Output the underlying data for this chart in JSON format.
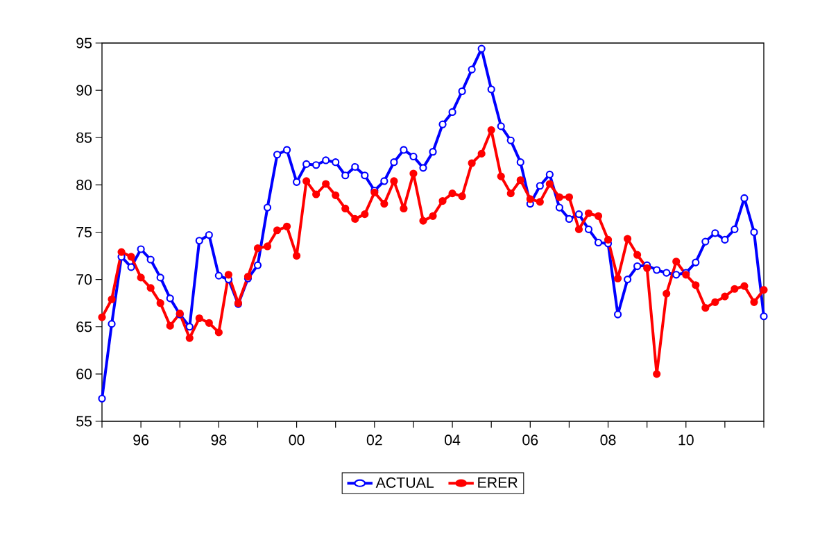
{
  "chart_data": {
    "type": "line",
    "x": [
      "1995-01",
      "1995-04",
      "1995-07",
      "1995-10",
      "1996-01",
      "1996-04",
      "1996-07",
      "1996-10",
      "1997-01",
      "1997-04",
      "1997-07",
      "1997-10",
      "1998-01",
      "1998-04",
      "1998-07",
      "1998-10",
      "1999-01",
      "1999-04",
      "1999-07",
      "1999-10",
      "2000-01",
      "2000-04",
      "2000-07",
      "2000-10",
      "2001-01",
      "2001-04",
      "2001-07",
      "2001-10",
      "2002-01",
      "2002-04",
      "2002-07",
      "2002-10",
      "2003-01",
      "2003-04",
      "2003-07",
      "2003-10",
      "2004-01",
      "2004-04",
      "2004-07",
      "2004-10",
      "2005-01",
      "2005-04",
      "2005-07",
      "2005-10",
      "2006-01",
      "2006-04",
      "2006-07",
      "2006-10",
      "2007-01",
      "2007-04",
      "2007-07",
      "2007-10",
      "2008-01",
      "2008-04",
      "2008-07",
      "2008-10",
      "2009-01",
      "2009-04",
      "2009-07",
      "2009-10",
      "2010-01",
      "2010-04",
      "2010-07",
      "2010-10",
      "2011-01",
      "2011-04",
      "2011-07",
      "2011-10",
      "2012-01"
    ],
    "series": [
      {
        "name": "ACTUAL",
        "color": "#0000ff",
        "marker": "circle",
        "values": [
          57.4,
          65.3,
          72.4,
          71.3,
          73.2,
          72.1,
          70.2,
          68.0,
          66.3,
          65.0,
          74.1,
          74.7,
          70.4,
          70.0,
          67.4,
          70.1,
          71.5,
          77.6,
          83.2,
          83.7,
          80.3,
          82.2,
          82.1,
          82.6,
          82.4,
          81.0,
          81.9,
          81.0,
          79.4,
          80.4,
          82.4,
          83.7,
          83.0,
          81.8,
          83.5,
          86.4,
          87.7,
          89.9,
          92.2,
          94.4,
          90.1,
          86.2,
          84.7,
          82.4,
          78.0,
          79.9,
          81.1,
          77.6,
          76.4,
          76.9,
          75.3,
          73.9,
          73.8,
          66.3,
          70.0,
          71.4,
          71.5,
          71.0,
          70.7,
          70.5,
          70.7,
          71.8,
          74.0,
          74.9,
          74.2,
          75.3,
          78.6,
          75.0,
          66.1
        ]
      },
      {
        "name": "ERER",
        "color": "#ff0000",
        "marker": "circle",
        "values": [
          66.0,
          67.9,
          72.9,
          72.4,
          70.2,
          69.1,
          67.5,
          65.1,
          66.4,
          63.8,
          65.9,
          65.4,
          64.4,
          70.5,
          67.5,
          70.3,
          73.3,
          73.5,
          75.2,
          75.6,
          72.5,
          80.4,
          79.0,
          80.1,
          78.9,
          77.5,
          76.4,
          76.9,
          79.2,
          78.0,
          80.4,
          77.5,
          81.2,
          76.2,
          76.7,
          78.3,
          79.1,
          78.8,
          82.3,
          83.3,
          85.8,
          80.9,
          79.1,
          80.5,
          78.5,
          78.2,
          80.1,
          78.7,
          78.7,
          75.3,
          77.0,
          76.7,
          74.2,
          70.1,
          74.3,
          72.6,
          71.2,
          60.0,
          68.5,
          71.9,
          70.5,
          69.4,
          67.0,
          67.6,
          68.2,
          69.0,
          69.3,
          67.6,
          68.9
        ]
      }
    ],
    "xlim": [
      "1995-01",
      "2012-01"
    ],
    "xticks": [
      {
        "value": "1995-01",
        "label": null
      },
      {
        "value": "1996-01",
        "label": "96"
      },
      {
        "value": "1997-01",
        "label": null
      },
      {
        "value": "1998-01",
        "label": "98"
      },
      {
        "value": "1999-01",
        "label": null
      },
      {
        "value": "2000-01",
        "label": "00"
      },
      {
        "value": "2001-01",
        "label": null
      },
      {
        "value": "2002-01",
        "label": "02"
      },
      {
        "value": "2003-01",
        "label": null
      },
      {
        "value": "2004-01",
        "label": "04"
      },
      {
        "value": "2005-01",
        "label": null
      },
      {
        "value": "2006-01",
        "label": "06"
      },
      {
        "value": "2007-01",
        "label": null
      },
      {
        "value": "2008-01",
        "label": "08"
      },
      {
        "value": "2009-01",
        "label": null
      },
      {
        "value": "2010-01",
        "label": "10"
      },
      {
        "value": "2011-01",
        "label": null
      },
      {
        "value": "2012-01",
        "label": null
      }
    ],
    "ylim": [
      55,
      95
    ],
    "yticks": [
      55,
      60,
      65,
      70,
      75,
      80,
      85,
      90,
      95
    ],
    "grid": false,
    "legend": "bottom",
    "line_style": "solid"
  }
}
